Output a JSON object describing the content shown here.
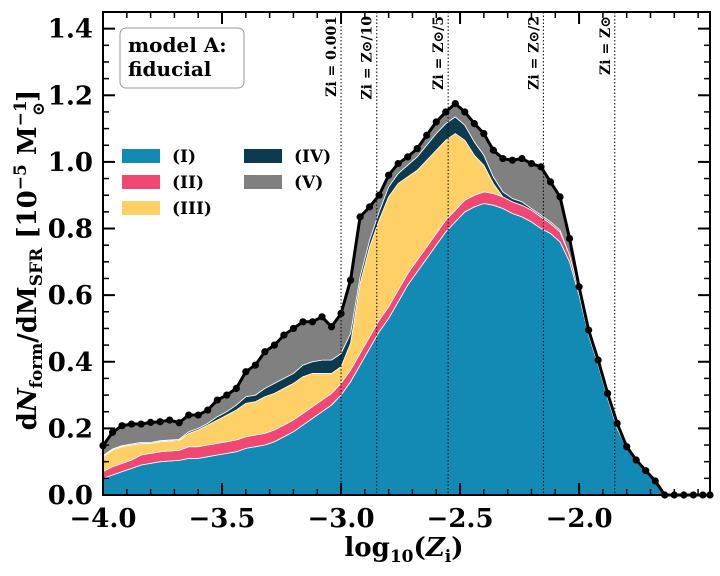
{
  "chart_data": {
    "type": "area",
    "stacked": true,
    "xlabel": "log10(Zi)",
    "ylabel": "dNform/dMSFR [10^-5 M⊙^-1]",
    "xlim": [
      -4.0,
      -1.45
    ],
    "ylim": [
      0.0,
      1.45
    ],
    "xticks": [
      -4.0,
      -3.5,
      -3.0,
      -2.5,
      -2.0
    ],
    "xtick_labels": [
      "−4.0",
      "−3.5",
      "−3.0",
      "−2.5",
      "−2.0"
    ],
    "yticks": [
      0.0,
      0.2,
      0.4,
      0.6,
      0.8,
      1.0,
      1.2,
      1.4
    ],
    "ytick_labels": [
      "0.0",
      "0.2",
      "0.4",
      "0.6",
      "0.8",
      "1.0",
      "1.2",
      "1.4"
    ],
    "annotation": {
      "line1": "model A:",
      "line2": "fiducial"
    },
    "legend_position": "center-left",
    "x": [
      -4.0,
      -3.96,
      -3.92,
      -3.88,
      -3.84,
      -3.8,
      -3.76,
      -3.72,
      -3.68,
      -3.64,
      -3.6,
      -3.56,
      -3.52,
      -3.48,
      -3.44,
      -3.4,
      -3.36,
      -3.32,
      -3.28,
      -3.24,
      -3.2,
      -3.16,
      -3.12,
      -3.08,
      -3.04,
      -3.0,
      -2.96,
      -2.92,
      -2.88,
      -2.84,
      -2.8,
      -2.76,
      -2.72,
      -2.68,
      -2.64,
      -2.6,
      -2.56,
      -2.52,
      -2.48,
      -2.44,
      -2.4,
      -2.36,
      -2.32,
      -2.28,
      -2.24,
      -2.2,
      -2.16,
      -2.12,
      -2.08,
      -2.04,
      -2.0,
      -1.96,
      -1.92,
      -1.88,
      -1.84,
      -1.8,
      -1.76,
      -1.72,
      -1.68,
      -1.64,
      -1.6,
      -1.56,
      -1.52,
      -1.48,
      -1.45
    ],
    "series": [
      {
        "name": "(I)",
        "color": "#138AB3",
        "values": [
          0.05,
          0.06,
          0.07,
          0.08,
          0.09,
          0.095,
          0.1,
          0.102,
          0.104,
          0.11,
          0.11,
          0.115,
          0.12,
          0.125,
          0.13,
          0.14,
          0.145,
          0.15,
          0.16,
          0.175,
          0.19,
          0.21,
          0.23,
          0.25,
          0.27,
          0.3,
          0.34,
          0.39,
          0.44,
          0.49,
          0.53,
          0.58,
          0.63,
          0.67,
          0.71,
          0.75,
          0.79,
          0.82,
          0.85,
          0.865,
          0.875,
          0.87,
          0.86,
          0.845,
          0.835,
          0.82,
          0.8,
          0.785,
          0.76,
          0.7,
          0.6,
          0.48,
          0.39,
          0.29,
          0.2,
          0.14,
          0.1,
          0.07,
          0.04,
          0.0,
          0.0,
          0.0,
          0.0,
          0.0,
          0.0
        ]
      },
      {
        "name": "(II)",
        "color": "#F04872",
        "values": [
          0.02,
          0.025,
          0.025,
          0.025,
          0.03,
          0.03,
          0.03,
          0.03,
          0.03,
          0.035,
          0.035,
          0.035,
          0.035,
          0.035,
          0.035,
          0.035,
          0.035,
          0.035,
          0.035,
          0.035,
          0.035,
          0.035,
          0.035,
          0.035,
          0.035,
          0.035,
          0.035,
          0.035,
          0.035,
          0.035,
          0.035,
          0.035,
          0.035,
          0.035,
          0.035,
          0.035,
          0.035,
          0.035,
          0.035,
          0.035,
          0.035,
          0.035,
          0.035,
          0.035,
          0.035,
          0.035,
          0.035,
          0.03,
          0.03,
          0.02,
          0.015,
          0.01,
          0.01,
          0.01,
          0.01,
          0.005,
          0.005,
          0.003,
          0.002,
          0.0,
          0.0,
          0.0,
          0.0,
          0.0,
          0.0
        ]
      },
      {
        "name": "(III)",
        "color": "#FFD066",
        "values": [
          0.045,
          0.05,
          0.05,
          0.045,
          0.035,
          0.03,
          0.03,
          0.03,
          0.03,
          0.04,
          0.05,
          0.06,
          0.07,
          0.08,
          0.09,
          0.1,
          0.1,
          0.11,
          0.11,
          0.11,
          0.11,
          0.11,
          0.1,
          0.08,
          0.06,
          0.05,
          0.08,
          0.21,
          0.27,
          0.3,
          0.33,
          0.32,
          0.29,
          0.27,
          0.26,
          0.25,
          0.24,
          0.23,
          0.18,
          0.12,
          0.08,
          0.03,
          0.0,
          0.0,
          0.0,
          0.0,
          0.0,
          0.0,
          0.0,
          0.0,
          0.0,
          0.0,
          0.0,
          0.0,
          0.0,
          0.0,
          0.0,
          0.0,
          0.0,
          0.0,
          0.0,
          0.0,
          0.0,
          0.0,
          0.0
        ]
      },
      {
        "name": "(IV)",
        "color": "#0C3A4E",
        "values": [
          0.003,
          0.003,
          0.003,
          0.003,
          0.003,
          0.003,
          0.003,
          0.003,
          0.003,
          0.005,
          0.005,
          0.005,
          0.01,
          0.01,
          0.015,
          0.02,
          0.02,
          0.025,
          0.03,
          0.03,
          0.03,
          0.035,
          0.035,
          0.04,
          0.04,
          0.04,
          0.03,
          0.02,
          0.02,
          0.025,
          0.03,
          0.03,
          0.035,
          0.04,
          0.045,
          0.05,
          0.05,
          0.05,
          0.045,
          0.04,
          0.03,
          0.02,
          0.015,
          0.01,
          0.01,
          0.005,
          0.005,
          0.005,
          0.005,
          0.0,
          0.0,
          0.0,
          0.0,
          0.0,
          0.0,
          0.0,
          0.0,
          0.0,
          0.0,
          0.0,
          0.0,
          0.0,
          0.0,
          0.0,
          0.0
        ]
      },
      {
        "name": "(V)",
        "color": "#808080",
        "values": [
          0.03,
          0.05,
          0.06,
          0.06,
          0.055,
          0.06,
          0.057,
          0.06,
          0.05,
          0.05,
          0.04,
          0.04,
          0.05,
          0.05,
          0.05,
          0.075,
          0.09,
          0.11,
          0.115,
          0.13,
          0.135,
          0.13,
          0.12,
          0.13,
          0.1,
          0.12,
          0.16,
          0.18,
          0.1,
          0.05,
          0.035,
          0.03,
          0.025,
          0.025,
          0.03,
          0.035,
          0.035,
          0.04,
          0.045,
          0.055,
          0.065,
          0.08,
          0.1,
          0.115,
          0.135,
          0.135,
          0.145,
          0.12,
          0.1,
          0.05,
          0.01,
          0.005,
          0.005,
          0.005,
          0.005,
          0.0,
          0.0,
          0.0,
          0.0,
          0.0,
          0.0,
          0.0,
          0.0,
          0.0,
          0.0
        ]
      }
    ],
    "total": {
      "name": "total",
      "color": "#000000",
      "values": [
        0.148,
        0.188,
        0.208,
        0.213,
        0.213,
        0.218,
        0.22,
        0.225,
        0.217,
        0.24,
        0.24,
        0.255,
        0.285,
        0.3,
        0.32,
        0.37,
        0.39,
        0.43,
        0.45,
        0.48,
        0.5,
        0.52,
        0.52,
        0.535,
        0.505,
        0.545,
        0.645,
        0.835,
        0.865,
        0.9,
        0.96,
        0.995,
        1.015,
        1.04,
        1.08,
        1.12,
        1.15,
        1.175,
        1.15,
        1.115,
        1.085,
        1.035,
        1.01,
        1.005,
        1.01,
        0.995,
        0.985,
        0.94,
        0.895,
        0.77,
        0.625,
        0.495,
        0.405,
        0.305,
        0.215,
        0.145,
        0.105,
        0.073,
        0.042,
        0.0,
        0.0,
        0.0,
        0.0,
        0.0,
        0.0
      ]
    },
    "reference_lines": [
      {
        "x": -3.0,
        "label": "Zi = 0.001"
      },
      {
        "x": -2.85,
        "label": "Zi = Z⊙/10"
      },
      {
        "x": -2.55,
        "label": "Zi = Z⊙/5"
      },
      {
        "x": -2.15,
        "label": "Zi = Z⊙/2"
      },
      {
        "x": -1.85,
        "label": "Zi = Z⊙"
      }
    ]
  }
}
